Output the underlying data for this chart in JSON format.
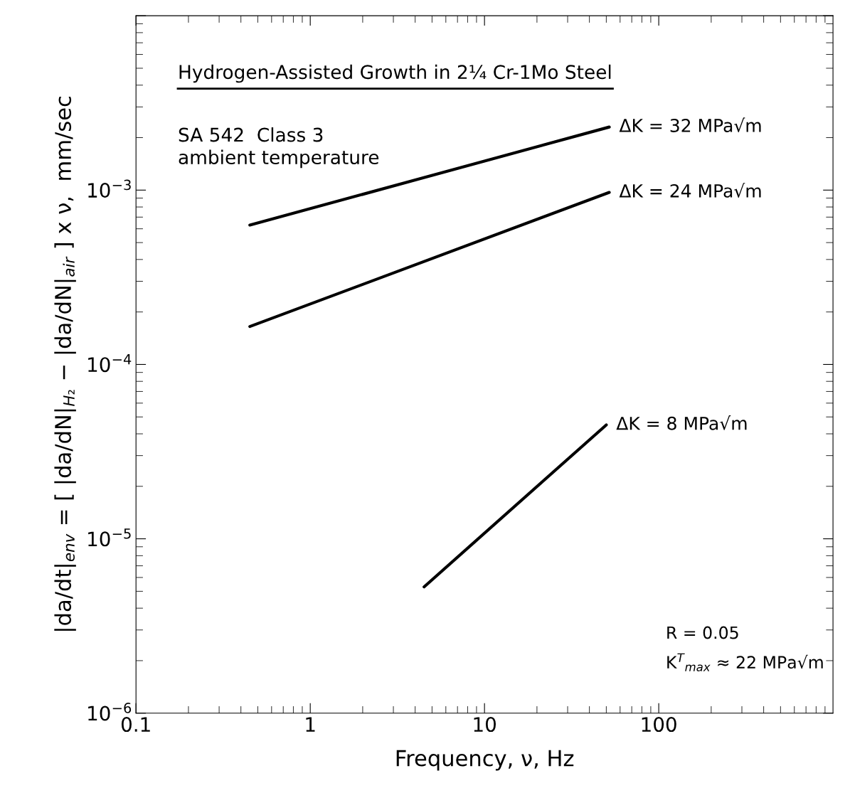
{
  "chart_data": {
    "type": "line",
    "xlabel": "Frequency, ν, Hz",
    "ylabel": "|da/dt|$_{env}$ = [ |da/dN|$_{H₂}$ − |da/dN|$_{air}$ ] x ν,  mm/sec",
    "x": [
      0.45,
      52
    ],
    "series": [
      {
        "name": "ΔK = 32 MPa√m",
        "color": "#000000",
        "values": [
          0.00063,
          0.0023
        ]
      },
      {
        "name": "ΔK = 24 MPa√m",
        "color": "#000000",
        "values": [
          0.000165,
          0.00097
        ]
      },
      {
        "name": "ΔK = 8 MPa√m",
        "color": "#000000",
        "x": [
          4.5,
          50
        ],
        "values": [
          5.3e-06,
          4.5e-05
        ]
      }
    ],
    "annotations": [
      "Hydrogen-Assisted Growth in 2¼ Cr-1Mo Steel",
      "SA 542  Class 3\nambient temperature",
      "R = 0.05",
      "K$^{T}$$_{max}$ ≈ 22 MPa√m"
    ],
    "log": "xy",
    "xlim": [
      0.1,
      1000
    ],
    "ylim": [
      1e-06,
      0.01
    ],
    "xticks": [
      {
        "value": 0.1,
        "label": "0.1"
      },
      {
        "value": 1,
        "label": "1"
      },
      {
        "value": 10,
        "label": "10"
      },
      {
        "value": 100,
        "label": "100"
      }
    ],
    "yticks": [
      {
        "value": 1e-06,
        "label": "10$^{−6}$"
      },
      {
        "value": 1e-05,
        "label": "10$^{−5}$"
      },
      {
        "value": 0.0001,
        "label": "10$^{−4}$"
      },
      {
        "value": 0.001,
        "label": "10$^{−3}$"
      },
      {
        "value": 0.01,
        "label": null
      }
    ],
    "grid": false,
    "legend": false,
    "marker": "none",
    "line_style": "solid"
  }
}
